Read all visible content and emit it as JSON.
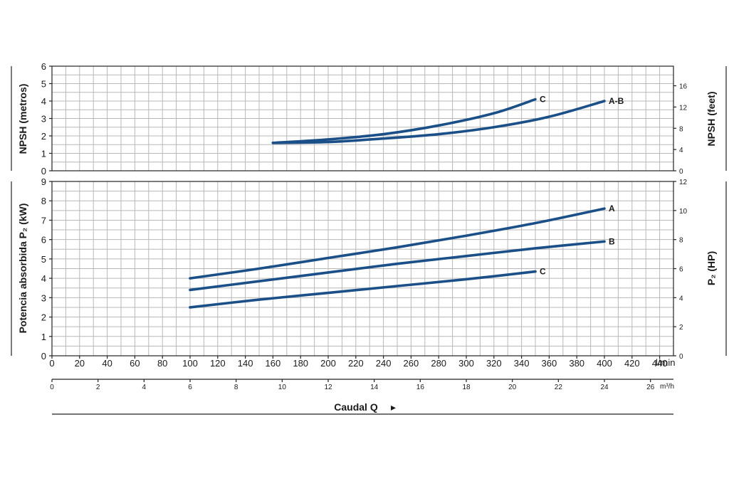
{
  "chart_data": [
    {
      "type": "line",
      "panel": "npsh",
      "ylabel_left": "NPSH (metros)",
      "ylabel_right": "NPSH (feet)",
      "ylim": [
        0,
        6
      ],
      "y_ticks": [
        0,
        1,
        2,
        3,
        4,
        5,
        6
      ],
      "y2lim": [
        0,
        19.685
      ],
      "y2_ticks": [
        0,
        4,
        8,
        12,
        16
      ],
      "xlim": [
        0,
        450
      ],
      "x_gridlines_every": 10,
      "y_gridlines_every": 0.5,
      "grid": true,
      "series": [
        {
          "name": "C",
          "x": [
            160,
            200,
            240,
            280,
            320,
            350
          ],
          "y": [
            1.6,
            1.8,
            2.1,
            2.6,
            3.3,
            4.1
          ]
        },
        {
          "name": "A-B",
          "x": [
            160,
            200,
            240,
            280,
            320,
            360,
            400
          ],
          "y": [
            1.6,
            1.65,
            1.85,
            2.1,
            2.5,
            3.1,
            4.0
          ]
        }
      ]
    },
    {
      "type": "line",
      "panel": "power",
      "ylabel_left": "Potencia absorbida P₂ (kW)",
      "ylabel_right": "P₂ (HP)",
      "ylim": [
        0,
        9
      ],
      "y_ticks": [
        0,
        1,
        2,
        3,
        4,
        5,
        6,
        7,
        8,
        9
      ],
      "y2lim": [
        0,
        12
      ],
      "y2_ticks": [
        0,
        2,
        4,
        6,
        8,
        10,
        12
      ],
      "xlim": [
        0,
        450
      ],
      "x_gridlines_every": 10,
      "y_gridlines_every": 0.5,
      "grid": true,
      "series": [
        {
          "name": "A",
          "x": [
            100,
            150,
            200,
            250,
            300,
            350,
            400
          ],
          "y": [
            4.0,
            4.5,
            5.05,
            5.6,
            6.2,
            6.85,
            7.6
          ]
        },
        {
          "name": "B",
          "x": [
            100,
            150,
            200,
            250,
            300,
            350,
            400
          ],
          "y": [
            3.4,
            3.85,
            4.3,
            4.75,
            5.15,
            5.55,
            5.9
          ]
        },
        {
          "name": "C",
          "x": [
            100,
            150,
            200,
            250,
            300,
            350
          ],
          "y": [
            2.5,
            2.9,
            3.25,
            3.6,
            3.95,
            4.35
          ]
        }
      ]
    }
  ],
  "x_axis": {
    "primary_ticks": [
      0,
      20,
      40,
      60,
      80,
      100,
      120,
      140,
      160,
      180,
      200,
      220,
      240,
      260,
      280,
      300,
      320,
      340,
      360,
      380,
      400,
      420,
      440
    ],
    "primary_unit": "l/min",
    "secondary_ticks": [
      0,
      2,
      4,
      6,
      8,
      10,
      12,
      14,
      16,
      18,
      20,
      22,
      24,
      26
    ],
    "secondary_unit": "m³/h",
    "title": "Caudal Q",
    "title_arrow": "▸"
  }
}
